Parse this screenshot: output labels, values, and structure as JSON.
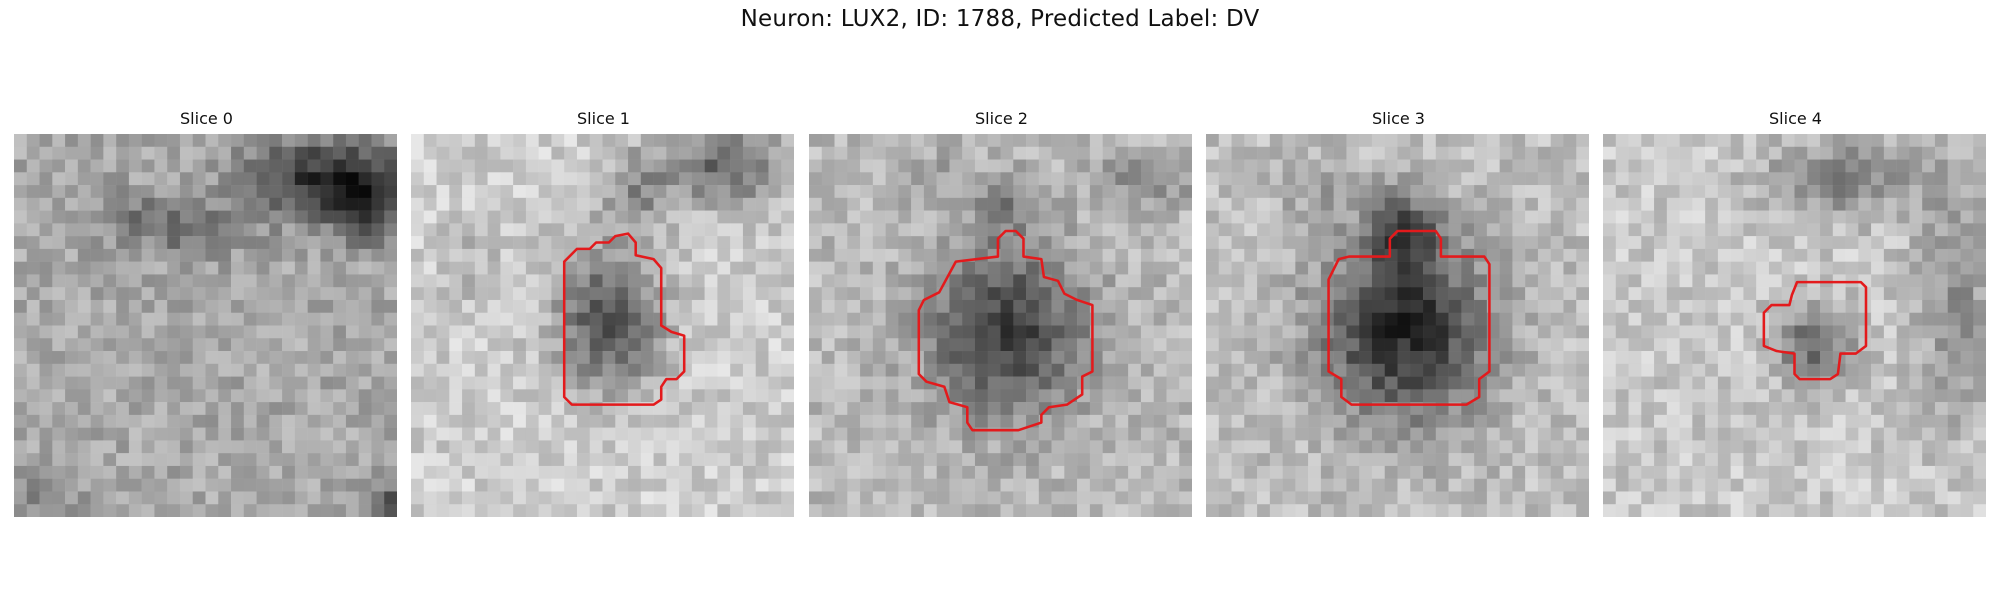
{
  "figure": {
    "title": "Neuron: LUX2, ID: 1788, Predicted Label: DV",
    "contour_color": "#e31a1c"
  },
  "panels": [
    {
      "title": "Slice 0",
      "has_contour": false
    },
    {
      "title": "Slice 1",
      "has_contour": true
    },
    {
      "title": "Slice 2",
      "has_contour": true
    },
    {
      "title": "Slice 3",
      "has_contour": true
    },
    {
      "title": "Slice 4",
      "has_contour": true
    }
  ]
}
